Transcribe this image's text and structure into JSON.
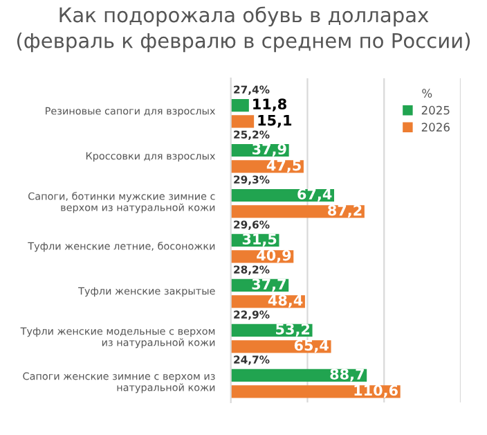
{
  "chart_data": {
    "type": "bar",
    "orientation": "horizontal",
    "title": "Как подорожала обувь в долларах\n(февраль к февралю в среднем по России)",
    "categories": [
      "Резиновые сапоги для взрослых",
      "Кроссовки для взрослых",
      "Сапоги, ботинки мужские зимние с верхом из натуральной кожи",
      "Туфли женские летние, босоножки",
      "Туфли женские закрытые",
      "Туфли женские модельные с верхом из натуральной кожи",
      "Сапоги женские зимние с верхом из натуральной кожи"
    ],
    "series": [
      {
        "name": "2025",
        "color": "#21a450",
        "values": [
          11.8,
          37.9,
          67.4,
          31.5,
          37.7,
          53.2,
          88.7
        ],
        "value_labels": [
          "11,8",
          "37,9",
          "67,4",
          "31,5",
          "37,7",
          "53,2",
          "88,7"
        ]
      },
      {
        "name": "2026",
        "color": "#ed7d31",
        "values": [
          15.1,
          47.5,
          87.2,
          40.9,
          48.4,
          65.4,
          110.6
        ],
        "value_labels": [
          "15,1",
          "47,5",
          "87,2",
          "40,9",
          "48,4",
          "65,4",
          "110,6"
        ]
      }
    ],
    "annotations": [
      "27,4%",
      "25,2%",
      "29,3%",
      "29,6%",
      "28,2%",
      "22,9%",
      "24,7%"
    ],
    "legend_title": "%",
    "legend": "top right",
    "xlim": [
      0,
      150
    ],
    "xticks": [
      {
        "value": 50,
        "label": null
      },
      {
        "value": 100,
        "label": null
      },
      {
        "value": 150,
        "label": null
      }
    ],
    "grid": "x",
    "tick_labels": "y"
  }
}
